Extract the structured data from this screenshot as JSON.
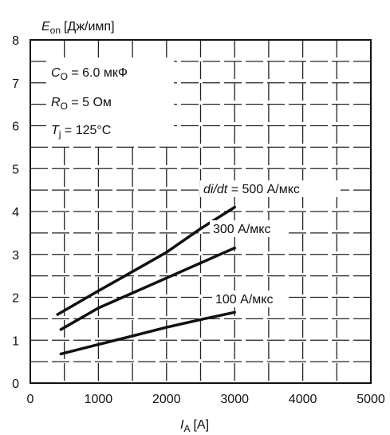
{
  "chart_data": {
    "type": "line",
    "ylabel_main": "E",
    "ylabel_sub": "on",
    "ylabel_unit": "[Дж/имп]",
    "xlabel_main": "I",
    "xlabel_sub": "A",
    "xlabel_unit": "[A]",
    "xlim": [
      0,
      5000
    ],
    "ylim": [
      0,
      8
    ],
    "xticks": [
      0,
      1000,
      2000,
      3000,
      4000,
      5000
    ],
    "yticks": [
      0,
      1,
      2,
      3,
      4,
      5,
      6,
      7,
      8
    ],
    "grid": true,
    "grid_style": "dashed",
    "conditions": [
      {
        "main": "C",
        "sub": "O",
        "rest": " = 6.0 мкФ"
      },
      {
        "main": "R",
        "sub": "O",
        "rest": " = 5 Ом"
      },
      {
        "main": "T",
        "sub": "j",
        "rest": " = 125°C"
      }
    ],
    "series": [
      {
        "name": "di/dt = 500 А/мкс",
        "label_prefix": "di/dt",
        "label_value": " = 500 А/мкс",
        "x": [
          400,
          1000,
          1500,
          2000,
          2500,
          3000
        ],
        "y": [
          1.6,
          2.15,
          2.6,
          3.05,
          3.6,
          4.1
        ]
      },
      {
        "name": "300 А/мкс",
        "label_prefix": "",
        "label_value": "300 А/мкс",
        "x": [
          450,
          1000,
          1500,
          2000,
          2500,
          3000
        ],
        "y": [
          1.25,
          1.75,
          2.1,
          2.45,
          2.8,
          3.15
        ]
      },
      {
        "name": "100 А/мкс",
        "label_prefix": "",
        "label_value": "100 А/мкс",
        "x": [
          450,
          1000,
          1500,
          2000,
          2500,
          3000
        ],
        "y": [
          0.68,
          0.9,
          1.1,
          1.3,
          1.48,
          1.65
        ]
      }
    ],
    "colors": {
      "line": "#111111",
      "grid": "#222222"
    }
  }
}
